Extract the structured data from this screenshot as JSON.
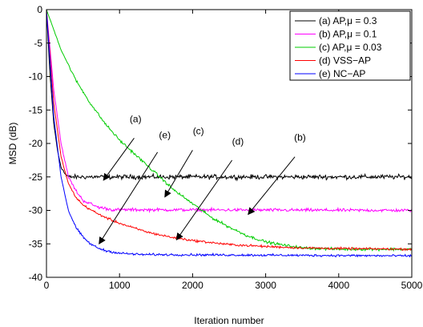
{
  "chart_data": {
    "type": "line",
    "title": "",
    "xlabel": "Iteration number",
    "ylabel": "MSD (dB)",
    "xlim": [
      0,
      5000
    ],
    "ylim": [
      -40,
      0
    ],
    "xticks": [
      0,
      1000,
      2000,
      3000,
      4000,
      5000
    ],
    "yticks": [
      0,
      -5,
      -10,
      -15,
      -20,
      -25,
      -30,
      -35,
      -40
    ],
    "grid": false,
    "legend_position": "top-right",
    "series": [
      {
        "name": "(a) AP,μ = 0.3",
        "color": "#000000",
        "noise": 0.5,
        "points": [
          [
            0,
            0
          ],
          [
            50,
            -10
          ],
          [
            100,
            -17
          ],
          [
            150,
            -21
          ],
          [
            200,
            -23.5
          ],
          [
            250,
            -24.5
          ],
          [
            300,
            -25
          ],
          [
            5000,
            -25
          ]
        ]
      },
      {
        "name": "(b) AP,μ = 0.1",
        "color": "#ff00ff",
        "noise": 0.35,
        "points": [
          [
            0,
            0
          ],
          [
            100,
            -12
          ],
          [
            200,
            -20
          ],
          [
            300,
            -25
          ],
          [
            400,
            -27
          ],
          [
            500,
            -28.5
          ],
          [
            700,
            -29.5
          ],
          [
            900,
            -29.9
          ],
          [
            5000,
            -30
          ]
        ]
      },
      {
        "name": "(c) AP,μ = 0.03",
        "color": "#00cc00",
        "noise": 0.3,
        "points": [
          [
            0,
            0
          ],
          [
            200,
            -6
          ],
          [
            400,
            -10.5
          ],
          [
            600,
            -14
          ],
          [
            800,
            -17
          ],
          [
            1000,
            -19.5
          ],
          [
            1250,
            -22
          ],
          [
            1500,
            -24.5
          ],
          [
            1750,
            -27
          ],
          [
            2000,
            -29
          ],
          [
            2250,
            -31
          ],
          [
            2500,
            -32.5
          ],
          [
            2750,
            -33.8
          ],
          [
            3000,
            -34.7
          ],
          [
            3250,
            -35.2
          ],
          [
            3500,
            -35.6
          ],
          [
            3750,
            -35.7
          ],
          [
            4000,
            -35.8
          ],
          [
            5000,
            -35.8
          ]
        ]
      },
      {
        "name": "(d) VSS−AP",
        "color": "#ff0000",
        "noise": 0.25,
        "points": [
          [
            0,
            0
          ],
          [
            100,
            -14
          ],
          [
            200,
            -22
          ],
          [
            300,
            -26
          ],
          [
            400,
            -28
          ],
          [
            500,
            -29.2
          ],
          [
            700,
            -30.5
          ],
          [
            900,
            -31.5
          ],
          [
            1100,
            -32.3
          ],
          [
            1400,
            -33.3
          ],
          [
            1700,
            -34
          ],
          [
            2000,
            -34.5
          ],
          [
            2500,
            -35.1
          ],
          [
            3000,
            -35.4
          ],
          [
            3500,
            -35.6
          ],
          [
            4000,
            -35.7
          ],
          [
            5000,
            -35.8
          ]
        ]
      },
      {
        "name": "(e) NC−AP",
        "color": "#0000ff",
        "noise": 0.25,
        "points": [
          [
            0,
            0
          ],
          [
            100,
            -16
          ],
          [
            200,
            -25
          ],
          [
            300,
            -30
          ],
          [
            400,
            -32.5
          ],
          [
            500,
            -34
          ],
          [
            600,
            -35
          ],
          [
            700,
            -35.6
          ],
          [
            800,
            -36
          ],
          [
            1000,
            -36.4
          ],
          [
            1300,
            -36.6
          ],
          [
            5000,
            -36.8
          ]
        ]
      }
    ],
    "annotations": [
      {
        "label": "(a)",
        "text_at": [
          1220,
          -16.8
        ],
        "arrow_from": [
          1200,
          -19.2
        ],
        "arrow_to": [
          780,
          -25.5
        ]
      },
      {
        "label": "(e)",
        "text_at": [
          1620,
          -19.2
        ],
        "arrow_from": [
          1520,
          -21.3
        ],
        "arrow_to": [
          720,
          -35
        ]
      },
      {
        "label": "(c)",
        "text_at": [
          2080,
          -18.6
        ],
        "arrow_from": [
          2000,
          -21
        ],
        "arrow_to": [
          1620,
          -28
        ]
      },
      {
        "label": "(d)",
        "text_at": [
          2620,
          -20.2
        ],
        "arrow_from": [
          2540,
          -22.5
        ],
        "arrow_to": [
          1780,
          -34.4
        ]
      },
      {
        "label": "(b)",
        "text_at": [
          3470,
          -19.6
        ],
        "arrow_from": [
          3400,
          -22
        ],
        "arrow_to": [
          2760,
          -30.6
        ]
      }
    ]
  }
}
